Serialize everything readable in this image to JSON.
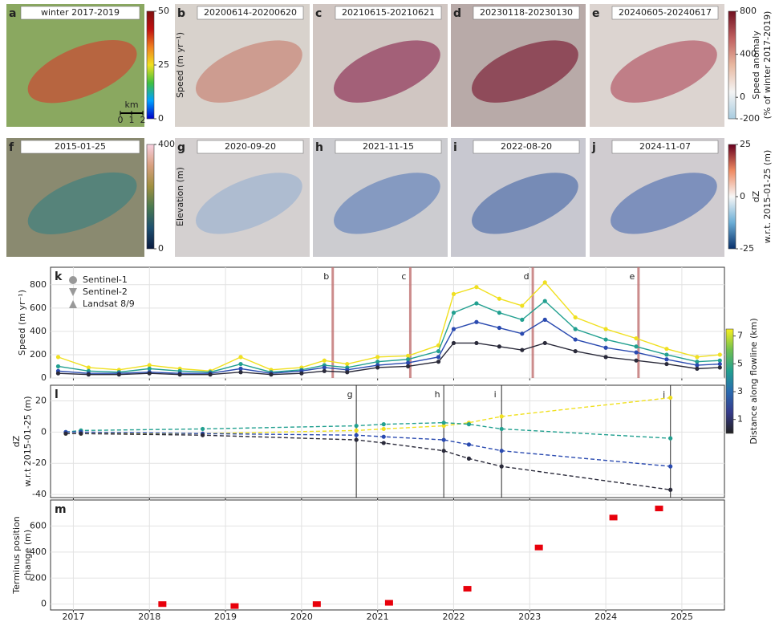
{
  "map_panels": [
    {
      "letter": "a",
      "title": "winter 2017-2019"
    },
    {
      "letter": "b",
      "title": "20200614-20200620"
    },
    {
      "letter": "c",
      "title": "20210615-20210621"
    },
    {
      "letter": "d",
      "title": "20230118-20230130"
    },
    {
      "letter": "e",
      "title": "20240605-20240617"
    },
    {
      "letter": "f",
      "title": "2015-01-25"
    },
    {
      "letter": "g",
      "title": "2020-09-20"
    },
    {
      "letter": "h",
      "title": "2021-11-15"
    },
    {
      "letter": "i",
      "title": "2022-08-20"
    },
    {
      "letter": "j",
      "title": "2024-11-07"
    }
  ],
  "scalebar": {
    "unit": "km",
    "ticks": [
      0,
      1,
      2
    ]
  },
  "colorbars": [
    {
      "label": [
        "Speed (m yr⁻¹)"
      ],
      "lim": [
        0,
        50
      ],
      "ticks": [
        0,
        25,
        50
      ],
      "colors": [
        "#0000c8",
        "#00a0ff",
        "#40c040",
        "#f0e020",
        "#f08020",
        "#c01010",
        "#801010"
      ]
    },
    {
      "label": [
        "Speed anomaly",
        "(% of winter 2017-2019)"
      ],
      "lim": [
        -200,
        800
      ],
      "ticks": [
        -200,
        0,
        400,
        800
      ],
      "colors": [
        "#a8cce0",
        "#f4f4f4",
        "#e8b8a0",
        "#c06060",
        "#701020"
      ]
    },
    {
      "label": [
        "Elevation (m)"
      ],
      "lim": [
        0,
        400
      ],
      "ticks": [
        0,
        400
      ],
      "colors": [
        "#0a1a40",
        "#1e5070",
        "#4a7a50",
        "#a09040",
        "#d8a080",
        "#f8d0e0"
      ]
    },
    {
      "label": [
        "dZ",
        "w.r.t. 2015-01-25 (m)"
      ],
      "lim": [
        -25,
        25
      ],
      "ticks": [
        -25,
        0,
        25
      ],
      "colors": [
        "#08306b",
        "#6baed6",
        "#f7f7f7",
        "#ef8a62",
        "#67001f"
      ]
    },
    {
      "label": [
        "Distance along flowline (km)"
      ],
      "lim": [
        0,
        7.5
      ],
      "ticks": [
        1,
        3,
        5,
        7
      ],
      "colors": [
        "#222222",
        "#353a8a",
        "#2a6ab0",
        "#22a090",
        "#70c050",
        "#f8f020"
      ]
    }
  ],
  "chart_data": [
    {
      "type": "line",
      "panel": "k",
      "ylabel": [
        "Speed (m yr⁻¹)"
      ],
      "xlim": [
        2016.7,
        2025.56
      ],
      "xticks": [
        2017,
        2018,
        2019,
        2020,
        2021,
        2022,
        2023,
        2024,
        2025
      ],
      "ylim": [
        0,
        950
      ],
      "yticks": [
        0,
        200,
        400,
        600,
        800
      ],
      "grid": true,
      "show_xtick_labels": false,
      "dashed": false,
      "legend": [
        {
          "name": "Sentinel-1",
          "marker": "circle"
        },
        {
          "name": "Sentinel-2",
          "marker": "down-triangle"
        },
        {
          "name": "Landsat 8/9",
          "marker": "up-triangle"
        }
      ],
      "legend_color": "#999999",
      "annotation_color": "#c07070",
      "annotations": [
        {
          "label": "b",
          "x": 2020.41
        },
        {
          "label": "c",
          "x": 2021.43
        },
        {
          "label": "d",
          "x": 2023.04
        },
        {
          "label": "e",
          "x": 2024.43
        }
      ],
      "x": [
        2016.8,
        2017.2,
        2017.6,
        2018.0,
        2018.4,
        2018.8,
        2019.2,
        2019.6,
        2020.0,
        2020.3,
        2020.6,
        2021.0,
        2021.4,
        2021.8,
        2022.0,
        2022.3,
        2022.6,
        2022.9,
        2023.2,
        2023.6,
        2024.0,
        2024.4,
        2024.8,
        2025.2,
        2025.5
      ],
      "series": [
        {
          "name": "7",
          "color": "#f0e020",
          "values": [
            180,
            90,
            70,
            110,
            80,
            60,
            180,
            70,
            90,
            150,
            120,
            180,
            190,
            280,
            720,
            780,
            680,
            620,
            820,
            520,
            420,
            340,
            250,
            180,
            200
          ]
        },
        {
          "name": "5",
          "color": "#22a090",
          "values": [
            100,
            60,
            50,
            80,
            60,
            50,
            120,
            50,
            70,
            110,
            90,
            140,
            160,
            230,
            560,
            640,
            560,
            500,
            660,
            420,
            330,
            270,
            200,
            140,
            150
          ]
        },
        {
          "name": "3",
          "color": "#2a4ab0",
          "values": [
            60,
            40,
            40,
            50,
            40,
            40,
            80,
            40,
            60,
            90,
            70,
            110,
            130,
            180,
            420,
            480,
            430,
            380,
            500,
            330,
            260,
            220,
            160,
            110,
            120
          ]
        },
        {
          "name": "1",
          "color": "#2a2a3a",
          "values": [
            40,
            30,
            30,
            40,
            30,
            30,
            50,
            30,
            40,
            60,
            50,
            90,
            100,
            140,
            300,
            300,
            270,
            240,
            300,
            230,
            180,
            150,
            120,
            80,
            90
          ]
        }
      ]
    },
    {
      "type": "line",
      "panel": "l",
      "ylabel": [
        "dZ",
        "w.r.t 2015-01-25 (m)"
      ],
      "xlim": [
        2016.7,
        2025.56
      ],
      "xticks": [
        2017,
        2018,
        2019,
        2020,
        2021,
        2022,
        2023,
        2024,
        2025
      ],
      "ylim": [
        -42,
        30
      ],
      "yticks": [
        -40,
        -20,
        0,
        20
      ],
      "grid": true,
      "show_xtick_labels": false,
      "dashed": true,
      "annotation_color": "#222222",
      "annotations": [
        {
          "label": "g",
          "x": 2020.72
        },
        {
          "label": "h",
          "x": 2021.87
        },
        {
          "label": "i",
          "x": 2022.63
        },
        {
          "label": "j",
          "x": 2024.85
        }
      ],
      "x": [
        2016.9,
        2017.1,
        2018.7,
        2020.72,
        2021.08,
        2021.87,
        2022.2,
        2022.63,
        2024.85
      ],
      "series": [
        {
          "name": "7",
          "color": "#f0e020",
          "values": [
            -1,
            -1,
            -1,
            1,
            2,
            4,
            6,
            10,
            22
          ]
        },
        {
          "name": "5",
          "color": "#22a090",
          "values": [
            0,
            1,
            2,
            4,
            5,
            6,
            5,
            2,
            -4
          ]
        },
        {
          "name": "3",
          "color": "#2a4ab0",
          "values": [
            0,
            0,
            -1,
            -2,
            -3,
            -5,
            -8,
            -12,
            -22
          ]
        },
        {
          "name": "1",
          "color": "#2a2a3a",
          "values": [
            -1,
            -1,
            -2,
            -5,
            -7,
            -12,
            -17,
            -22,
            -37
          ]
        }
      ]
    },
    {
      "type": "scatter",
      "panel": "m",
      "ylabel": [
        "Terminus position",
        "change (m)"
      ],
      "xlim": [
        2016.7,
        2025.56
      ],
      "xticks": [
        2017,
        2018,
        2019,
        2020,
        2021,
        2022,
        2023,
        2024,
        2025
      ],
      "ylim": [
        -45,
        800
      ],
      "yticks": [
        0,
        200,
        400,
        600
      ],
      "grid": true,
      "show_xtick_labels": true,
      "color": "#e8000b",
      "marker": "square",
      "x": [
        2018.17,
        2019.12,
        2020.2,
        2021.15,
        2022.18,
        2023.12,
        2024.1,
        2024.7
      ],
      "values": [
        0,
        -15,
        0,
        10,
        118,
        435,
        665,
        735
      ]
    }
  ]
}
